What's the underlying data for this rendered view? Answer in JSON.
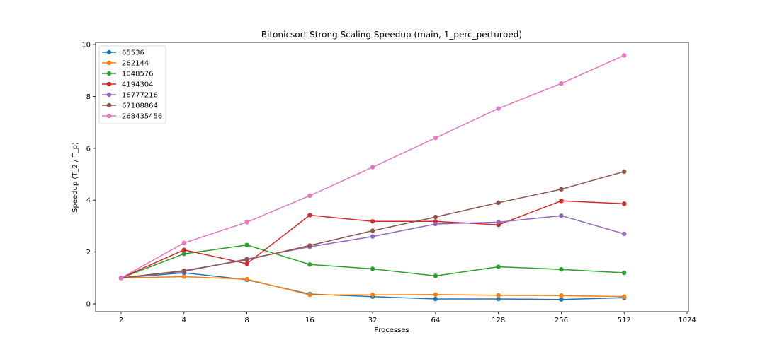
{
  "chart_data": {
    "type": "line",
    "title": "Bitonicsort Strong Scaling Speedup (main, 1_perc_perturbed)",
    "xlabel": "Processes",
    "ylabel": "Speedup (T_2 / T_p)",
    "x_scale": "log2",
    "xlim": [
      2,
      1024
    ],
    "ylim": [
      0,
      10
    ],
    "x_ticks": [
      "2",
      "4",
      "8",
      "16",
      "32",
      "64",
      "128",
      "256",
      "512",
      "1024"
    ],
    "y_ticks": [
      "0",
      "2",
      "4",
      "6",
      "8",
      "10"
    ],
    "legend_position": "top-left",
    "grid": false,
    "x": [
      2,
      4,
      8,
      16,
      32,
      64,
      128,
      256,
      512
    ],
    "series": [
      {
        "name": "65536",
        "color": "#1f77b4",
        "values": [
          1.0,
          1.2,
          0.93,
          0.38,
          0.28,
          0.19,
          0.19,
          0.17,
          0.24
        ]
      },
      {
        "name": "262144",
        "color": "#ff7f0e",
        "values": [
          1.0,
          1.05,
          0.95,
          0.35,
          0.35,
          0.36,
          0.33,
          0.32,
          0.28
        ]
      },
      {
        "name": "1048576",
        "color": "#2ca02c",
        "values": [
          1.0,
          1.93,
          2.27,
          1.52,
          1.35,
          1.08,
          1.43,
          1.33,
          1.2
        ]
      },
      {
        "name": "4194304",
        "color": "#d62728",
        "values": [
          1.0,
          2.08,
          1.55,
          3.42,
          3.18,
          3.18,
          3.05,
          3.97,
          3.86
        ]
      },
      {
        "name": "16777216",
        "color": "#9467bd",
        "values": [
          1.0,
          1.25,
          1.73,
          2.2,
          2.6,
          3.08,
          3.15,
          3.4,
          2.7
        ]
      },
      {
        "name": "67108864",
        "color": "#8c564b",
        "values": [
          1.0,
          1.28,
          1.7,
          2.25,
          2.82,
          3.35,
          3.9,
          4.42,
          5.1
        ]
      },
      {
        "name": "268435456",
        "color": "#e377c2",
        "values": [
          1.0,
          2.35,
          3.15,
          4.17,
          5.27,
          6.4,
          7.53,
          8.5,
          9.58
        ]
      }
    ]
  }
}
